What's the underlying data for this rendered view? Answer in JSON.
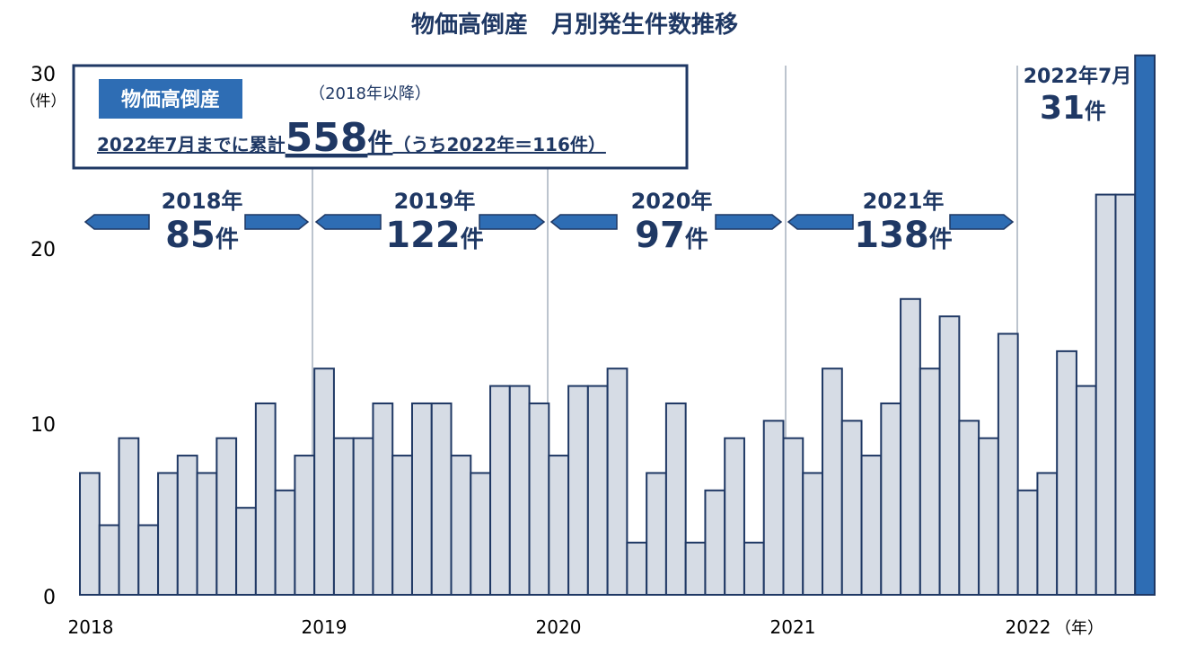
{
  "colors": {
    "bar_fill": "#d6dce5",
    "bar_highlight": "#2e6db4",
    "bar_stroke": "#1f3864",
    "text": "#1f3864",
    "badge_bg": "#2e6db4",
    "arrow": "#2e6db4"
  },
  "chart_data": {
    "type": "bar",
    "title": "物価高倒産　月別発生件数推移",
    "y_unit": "（件）",
    "x_unit": "（年）",
    "ylim": [
      0,
      30
    ],
    "y_ticks": [
      "0",
      "10",
      "20",
      "30"
    ],
    "x_tick_labels": [
      "2018",
      "2019",
      "2020",
      "2021",
      "2022"
    ],
    "categories": [
      "2018-01",
      "2018-02",
      "2018-03",
      "2018-04",
      "2018-05",
      "2018-06",
      "2018-07",
      "2018-08",
      "2018-09",
      "2018-10",
      "2018-11",
      "2018-12",
      "2019-01",
      "2019-02",
      "2019-03",
      "2019-04",
      "2019-05",
      "2019-06",
      "2019-07",
      "2019-08",
      "2019-09",
      "2019-10",
      "2019-11",
      "2019-12",
      "2020-01",
      "2020-02",
      "2020-03",
      "2020-04",
      "2020-05",
      "2020-06",
      "2020-07",
      "2020-08",
      "2020-09",
      "2020-10",
      "2020-11",
      "2020-12",
      "2021-01",
      "2021-02",
      "2021-03",
      "2021-04",
      "2021-05",
      "2021-06",
      "2021-07",
      "2021-08",
      "2021-09",
      "2021-10",
      "2021-11",
      "2021-12",
      "2022-01",
      "2022-02",
      "2022-03",
      "2022-04",
      "2022-05",
      "2022-06",
      "2022-07"
    ],
    "values": [
      7,
      4,
      9,
      4,
      7,
      8,
      7,
      9,
      5,
      11,
      6,
      8,
      13,
      9,
      9,
      11,
      8,
      11,
      11,
      8,
      7,
      12,
      12,
      11,
      8,
      12,
      12,
      13,
      3,
      7,
      11,
      3,
      6,
      9,
      3,
      10,
      9,
      7,
      13,
      10,
      8,
      11,
      17,
      13,
      16,
      10,
      9,
      15,
      6,
      7,
      14,
      12,
      23,
      23,
      31
    ],
    "highlight_index": 54,
    "year_totals": [
      {
        "year": "2018年",
        "count": "85",
        "unit": "件"
      },
      {
        "year": "2019年",
        "count": "122",
        "unit": "件"
      },
      {
        "year": "2020年",
        "count": "97",
        "unit": "件"
      },
      {
        "year": "2021年",
        "count": "138",
        "unit": "件"
      }
    ],
    "callout": {
      "label": "2022年7月",
      "count": "31",
      "unit": "件"
    },
    "summary": {
      "badge": "物価高倒産",
      "since": "（2018年以降）",
      "prefix": "2022年7月までに累計",
      "total": "558",
      "unit": "件",
      "suffix": "（うち2022年＝116件）"
    }
  }
}
